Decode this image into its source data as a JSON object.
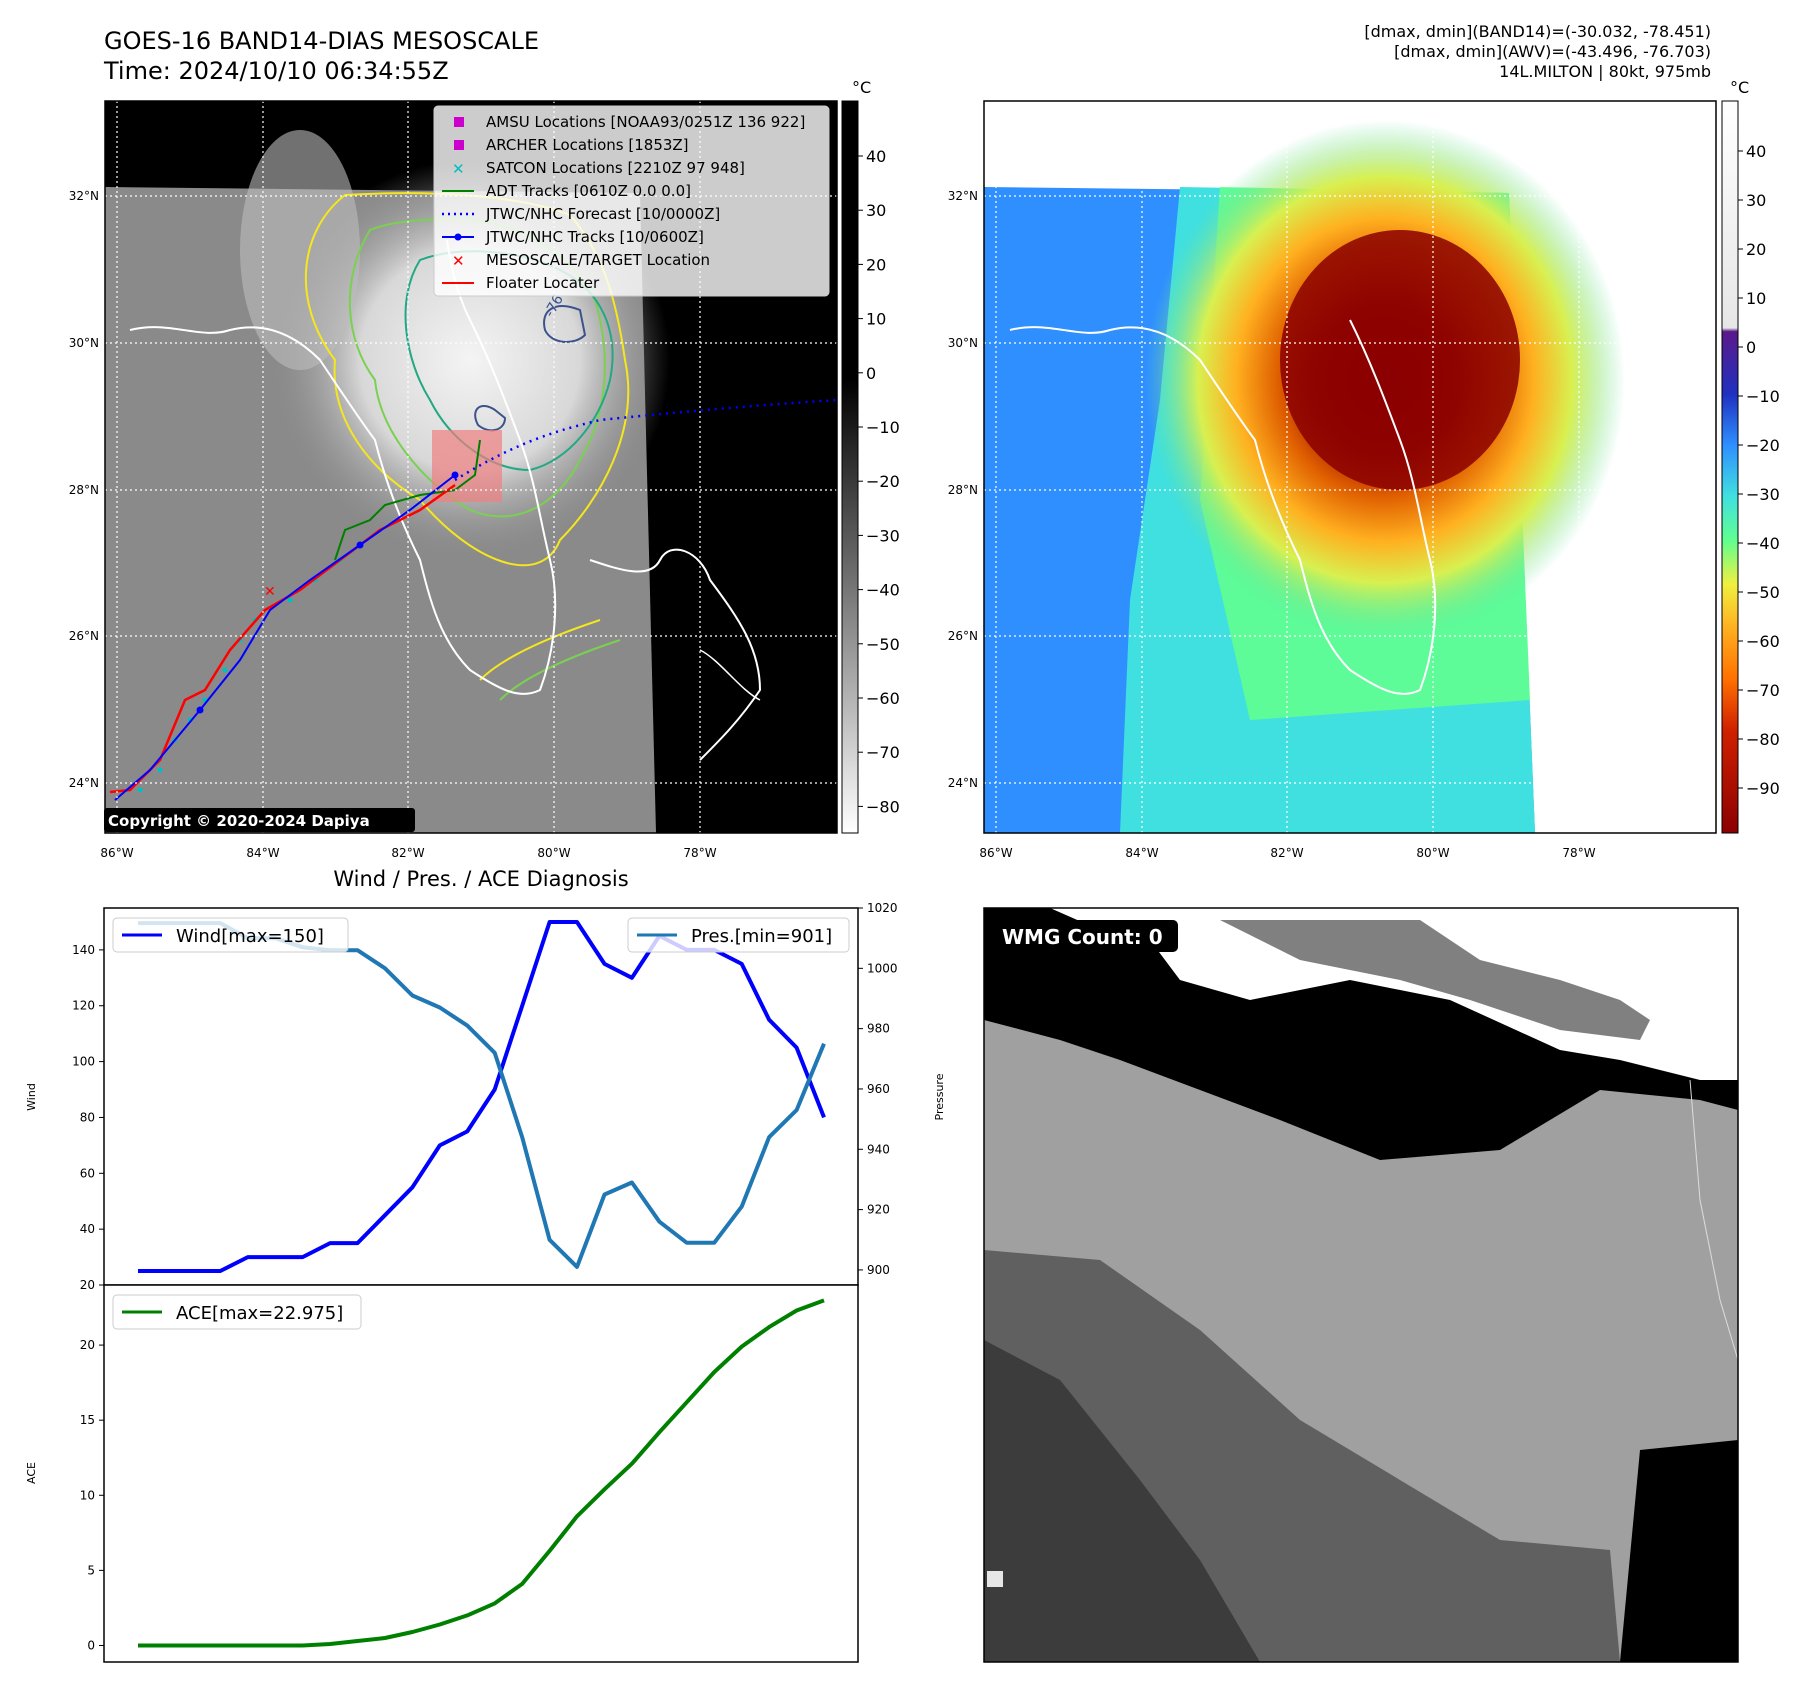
{
  "header": {
    "title": "GOES-16 BAND14-DIAS MESOSCALE",
    "time": "Time: 2024/10/10 06:34:55Z",
    "info_line1": "[dmax, dmin](BAND14)=(-30.032, -78.451)",
    "info_line2": "[dmax, dmin](AWV)=(-43.496, -76.703)",
    "info_line3": "14L.MILTON | 80kt, 975mb"
  },
  "copyright": "Copyright © 2020-2024 Dapiya",
  "map": {
    "lon_ticks": [
      "86°W",
      "84°W",
      "82°W",
      "80°W",
      "78°W"
    ],
    "lat_ticks": [
      "32°N",
      "30°N",
      "28°N",
      "26°N",
      "24°N"
    ],
    "contour_label": "-76",
    "legend": [
      {
        "label": "AMSU Locations [NOAA93/0251Z 136 922]",
        "marker": "square",
        "color": "#cc00cc"
      },
      {
        "label": "ARCHER Locations [1853Z]",
        "marker": "square",
        "color": "#cc00cc"
      },
      {
        "label": "SATCON Locations [2210Z 97 948]",
        "marker": "x",
        "color": "#00bfbf"
      },
      {
        "label": "ADT Tracks [0610Z 0.0 0.0]",
        "marker": "line",
        "color": "#007f00"
      },
      {
        "label": "JTWC/NHC Forecast [10/0000Z]",
        "marker": "dotted",
        "color": "#0000ff"
      },
      {
        "label": "JTWC/NHC Tracks [10/0600Z]",
        "marker": "line-dot",
        "color": "#0000ff"
      },
      {
        "label": "MESOSCALE/TARGET Location",
        "marker": "x",
        "color": "#ff0000"
      },
      {
        "label": "Floater Locater",
        "marker": "line",
        "color": "#ff0000"
      }
    ],
    "colorbar_gray": {
      "unit": "°C",
      "ticks": [
        "40",
        "30",
        "20",
        "10",
        "0",
        "−10",
        "−20",
        "−30",
        "−40",
        "−50",
        "−60",
        "−70",
        "−80"
      ]
    },
    "colorbar_color": {
      "unit": "°C",
      "ticks": [
        "40",
        "30",
        "20",
        "10",
        "0",
        "−10",
        "−20",
        "−30",
        "−40",
        "−50",
        "−60",
        "−70",
        "−80",
        "−90"
      ]
    }
  },
  "wmg": {
    "label": "WMG Count: 0"
  },
  "chart_data": [
    {
      "type": "line",
      "title": "Wind / Pres. / ACE Diagnosis",
      "ylabel": "Wind",
      "ylabel_right": "Pressure",
      "x": [
        0,
        1,
        2,
        3,
        4,
        5,
        6,
        7,
        8,
        9,
        10,
        11,
        12,
        13,
        14,
        15,
        16,
        17,
        18,
        19,
        20,
        21,
        22,
        23,
        24,
        25
      ],
      "ylim": [
        20,
        155
      ],
      "ylim_right": [
        895,
        1020
      ],
      "yticks": [
        20,
        40,
        60,
        80,
        100,
        120,
        140
      ],
      "yticks_right": [
        900,
        920,
        940,
        960,
        980,
        1000,
        1020
      ],
      "series": [
        {
          "name": "Wind[max=150]",
          "axis": "left",
          "color": "#0000ff",
          "values": [
            25,
            25,
            25,
            25,
            30,
            30,
            30,
            35,
            35,
            45,
            55,
            70,
            75,
            90,
            120,
            150,
            150,
            135,
            130,
            145,
            140,
            140,
            135,
            115,
            105,
            80
          ]
        },
        {
          "name": "Pres.[min=901]",
          "axis": "right",
          "color": "#1f77b4",
          "values": [
            1015,
            1015,
            1015,
            1015,
            1010,
            1010,
            1007,
            1006,
            1006,
            1000,
            991,
            987,
            981,
            972,
            944,
            910,
            901,
            925,
            929,
            916,
            909,
            909,
            921,
            944,
            953,
            975
          ]
        }
      ]
    },
    {
      "type": "line",
      "ylabel": "ACE",
      "x": [
        0,
        1,
        2,
        3,
        4,
        5,
        6,
        7,
        8,
        9,
        10,
        11,
        12,
        13,
        14,
        15,
        16,
        17,
        18,
        19,
        20,
        21,
        22,
        23,
        24,
        25
      ],
      "ylim": [
        -1.1,
        24
      ],
      "yticks": [
        0,
        5,
        10,
        15,
        20
      ],
      "series": [
        {
          "name": "ACE[max=22.975]",
          "color": "#008000",
          "values": [
            0,
            0,
            0,
            0,
            0,
            0,
            0,
            0.1,
            0.3,
            0.5,
            0.9,
            1.4,
            2.0,
            2.8,
            4.1,
            6.3,
            8.6,
            10.4,
            12.1,
            14.2,
            16.2,
            18.2,
            19.9,
            21.2,
            22.3,
            22.975
          ]
        }
      ]
    }
  ]
}
